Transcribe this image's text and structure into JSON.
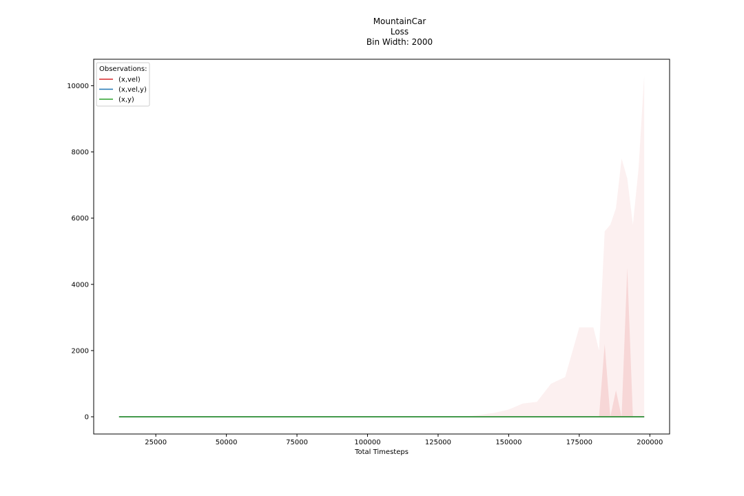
{
  "chart_data": {
    "type": "line",
    "title": [
      "MountainCar",
      "Loss",
      "Bin Width: 2000"
    ],
    "xlabel": "Total Timesteps",
    "ylabel": "",
    "xlim": [
      3000,
      207000
    ],
    "ylim": [
      -520,
      10800
    ],
    "xticks": [
      25000,
      50000,
      75000,
      100000,
      125000,
      150000,
      175000,
      200000
    ],
    "yticks": [
      0,
      2000,
      4000,
      6000,
      8000,
      10000
    ],
    "grid": false,
    "legend": {
      "title": "Observations:",
      "position": "top-left"
    },
    "series": [
      {
        "name": "(x,vel)",
        "color": "#d62728",
        "x": [
          12000,
          130000,
          136000,
          140000,
          145000,
          150000,
          155000,
          160000,
          165000,
          170000,
          175000,
          180000,
          182000,
          184000,
          186000,
          188000,
          190000,
          192000,
          194000,
          196000,
          198000
        ],
        "y": [
          0,
          0,
          0,
          0,
          0,
          0,
          0,
          0,
          0,
          0,
          0,
          0,
          0,
          0,
          0,
          0,
          0,
          0,
          0,
          0,
          0
        ],
        "band_outer_upper": [
          0,
          0,
          20,
          60,
          120,
          220,
          400,
          450,
          1000,
          1200,
          2700,
          2700,
          2000,
          5600,
          5800,
          6300,
          7800,
          7200,
          5800,
          7500,
          10300
        ],
        "band_inner_x": [
          182000,
          184000,
          186000,
          188000,
          190000,
          192000,
          194000
        ],
        "band_inner_upper": [
          0,
          2200,
          0,
          800,
          0,
          4500,
          0
        ]
      },
      {
        "name": "(x,vel,y)",
        "color": "#1f77b4",
        "x": [
          12000,
          198000
        ],
        "y": [
          0,
          0
        ]
      },
      {
        "name": "(x,y)",
        "color": "#2ca02c",
        "x": [
          12000,
          198000
        ],
        "y": [
          0,
          0
        ]
      }
    ]
  }
}
